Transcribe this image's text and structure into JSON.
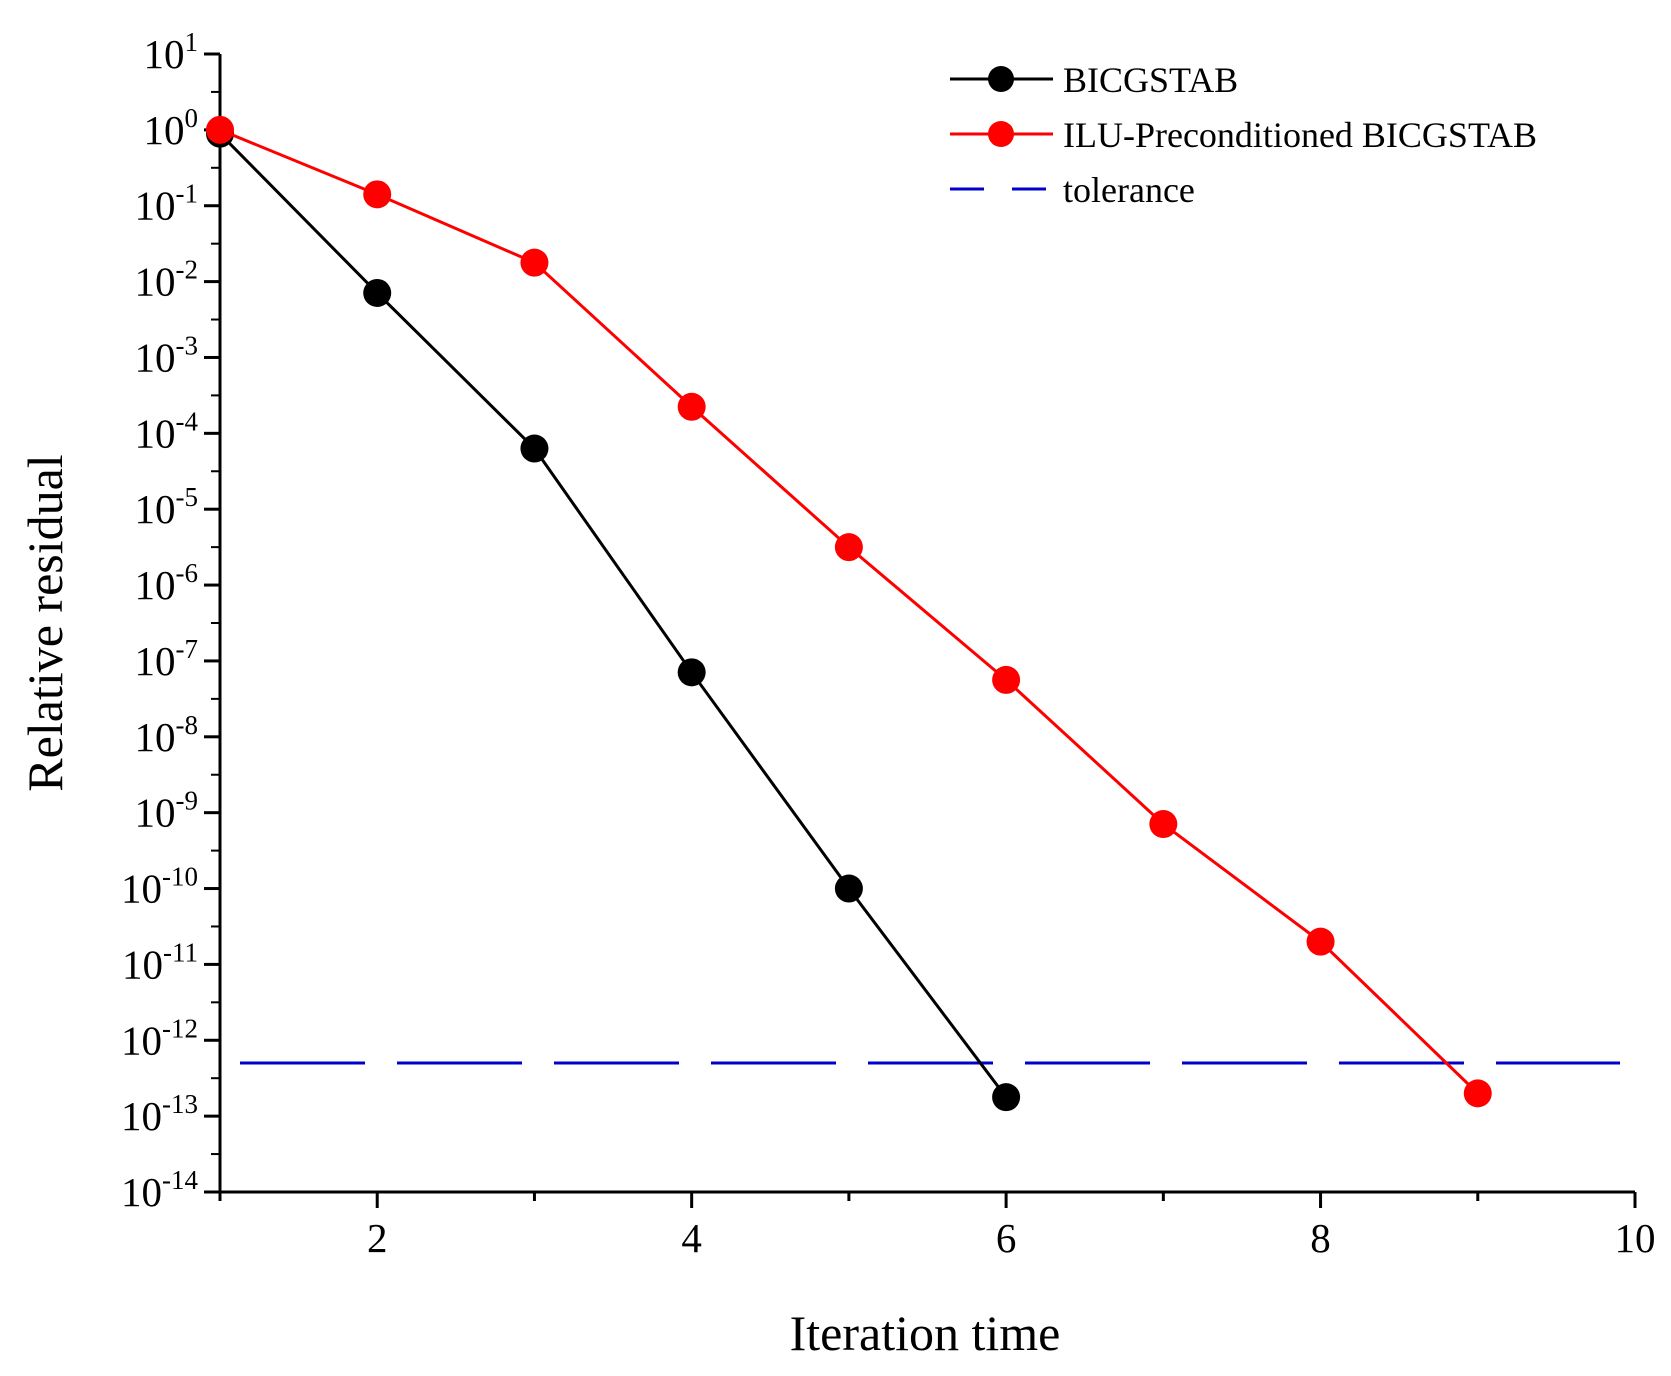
{
  "chart_data": {
    "type": "line",
    "title": "",
    "xlabel": "Iteration time",
    "ylabel": "Relative residual",
    "xlim": [
      1,
      10
    ],
    "ylim_exponents": [
      -14,
      1
    ],
    "yscale": "log",
    "x_ticks": [
      2,
      4,
      6,
      8,
      10
    ],
    "y_tick_base": "10",
    "y_tick_exponents": [
      "1",
      "0",
      "-1",
      "-2",
      "-3",
      "-4",
      "-5",
      "-6",
      "-7",
      "-8",
      "-9",
      "-10",
      "-11",
      "-12",
      "-13",
      "-14"
    ],
    "grid": false,
    "legend_position": "top-right",
    "series": [
      {
        "name": "BICGSTAB",
        "color": "#000000",
        "x": [
          1,
          2,
          3,
          4,
          5,
          6
        ],
        "log10_y": [
          -0.05,
          -2.15,
          -4.2,
          -7.15,
          -10.0,
          -12.75
        ]
      },
      {
        "name": "ILU-Preconditioned BICGSTAB",
        "color": "#ff0000",
        "x": [
          1,
          2,
          3,
          4,
          5,
          6,
          7,
          8,
          9
        ],
        "log10_y": [
          0.0,
          -0.85,
          -1.75,
          -3.65,
          -5.5,
          -7.25,
          -9.15,
          -10.7,
          -12.7
        ]
      }
    ],
    "reference_line": {
      "name": "tolerance",
      "color": "#0000cc",
      "log10_y": -12.3,
      "style": "dashed"
    }
  }
}
